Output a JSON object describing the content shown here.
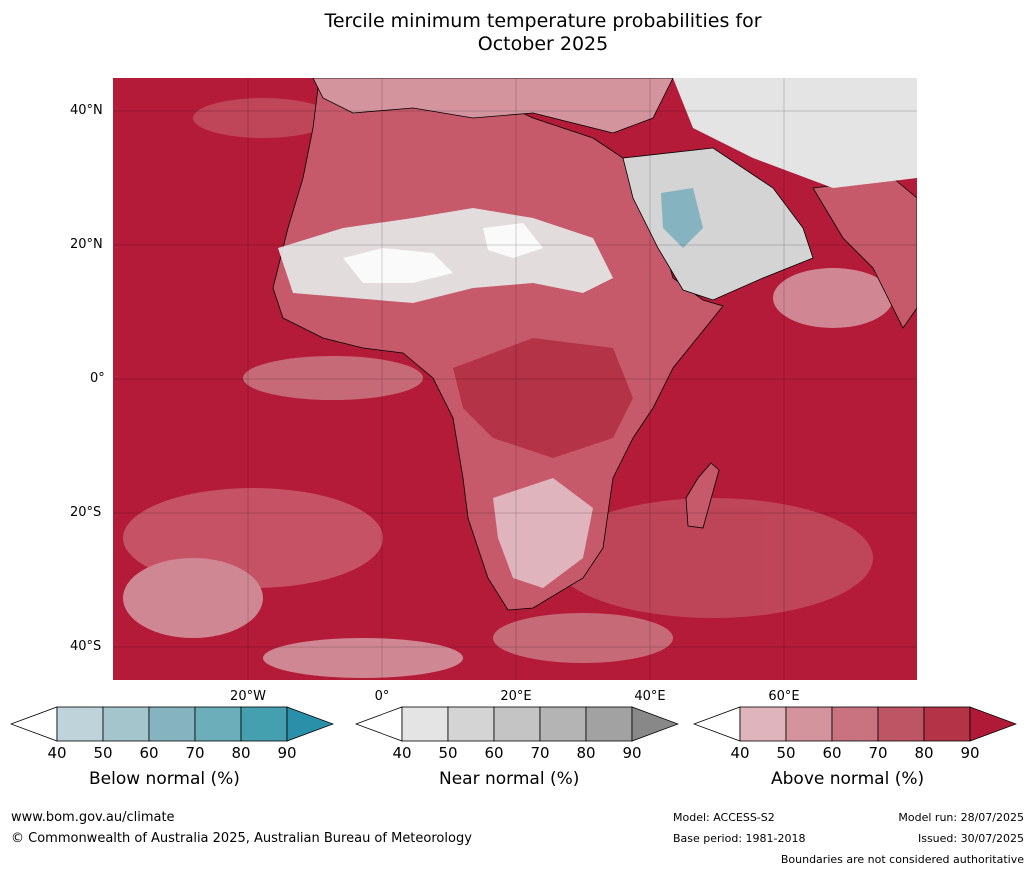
{
  "title_line1": "Tercile minimum temperature probabilities for",
  "title_line2": "October 2025",
  "map": {
    "lat_labels": [
      "40°N",
      "20°N",
      "0°",
      "20°S",
      "40°S"
    ],
    "lon_labels": [
      "20°W",
      "0°",
      "20°E",
      "40°E",
      "60°E"
    ],
    "ocean_color": "#b41b38"
  },
  "legends": [
    {
      "label": "Below normal (%)",
      "ticks": [
        "40",
        "50",
        "60",
        "70",
        "80",
        "90"
      ],
      "colors": [
        "#ffffff",
        "#bed3da",
        "#a5c5cd",
        "#86b3c0",
        "#6caeba",
        "#449faf",
        "#2a8fa8"
      ]
    },
    {
      "label": "Near normal (%)",
      "ticks": [
        "40",
        "50",
        "60",
        "70",
        "80",
        "90"
      ],
      "colors": [
        "#ffffff",
        "#e4e4e4",
        "#d4d4d4",
        "#c4c4c4",
        "#b4b4b4",
        "#a2a2a2",
        "#888888"
      ]
    },
    {
      "label": "Above normal (%)",
      "ticks": [
        "40",
        "50",
        "60",
        "70",
        "80",
        "90"
      ],
      "colors": [
        "#ffffff",
        "#e0b4bc",
        "#d3949d",
        "#c97380",
        "#bd5565",
        "#b43347",
        "#b11a36"
      ]
    }
  ],
  "footer": {
    "url": "www.bom.gov.au/climate",
    "copyright": "© Commonwealth of Australia 2025, Australian Bureau of Meteorology",
    "model": "Model: ACCESS-S2",
    "base_period": "Base period: 1981-2018",
    "model_run": "Model run: 28/07/2025",
    "issued": "Issued: 30/07/2025",
    "disclaimer": "Boundaries are not considered authoritative"
  }
}
